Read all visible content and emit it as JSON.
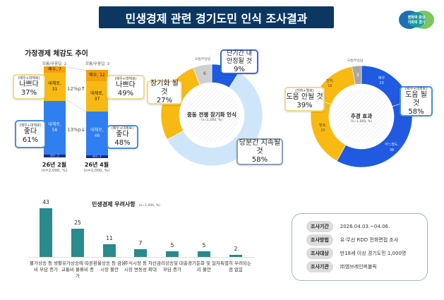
{
  "title": "민생경제 관련 경기도민 인식 조사결과",
  "logo_text": "변화의 중심 기회의 경기",
  "colors": {
    "navy": "#0b3761",
    "blue": "#1f5ae0",
    "light_blue": "#cfe6fa",
    "yellow": "#f8b912",
    "orange": "#f5a10a",
    "gray": "#cfcfcf",
    "teal": "#2a8a8c",
    "dark_navy": "#1a2a8a"
  },
  "household": {
    "title": "가정경제 체감도 추이",
    "diff_bad": "12%p",
    "diff_good": "13%p",
    "bars": [
      {
        "label": "26년 2월",
        "n": "(n=2,000, %)",
        "dk": "모름/무응답, 2",
        "s1": "매우, 7",
        "s2": "대체로,",
        "s2v": "31",
        "s3": "대체로,",
        "s3v": "58",
        "s4": "매우, 2",
        "bad": {
          "sub": "(매우+대체로)",
          "label": "나쁘다",
          "pct": "37%"
        },
        "good": {
          "sub": "(매우+대체로)",
          "label": "좋다",
          "pct": "61%"
        }
      },
      {
        "label": "26년 4월",
        "n": "(n=1,000, %)",
        "dk": "모름/무응답, 3",
        "s1": "매우, 12",
        "s2": "대체로,",
        "s2v": "37",
        "s3": "대체로,",
        "s3v": "46",
        "s4": "매우, 2",
        "bad": {
          "sub": "(매우+대체로)",
          "label": "나쁘다",
          "pct": "49%"
        },
        "good": {
          "sub": "(매우+대체로)",
          "label": "좋다",
          "pct": "48%"
        }
      }
    ]
  },
  "war": {
    "title": "중동 전쟁 장기화 인식",
    "n": "(n=1,000, %)",
    "dk_label": "모름/무응답",
    "dk_value": "6",
    "c1": {
      "label": "단기간 내 안정될 것",
      "pct": "9%"
    },
    "c2": {
      "label": "장기화 될 것",
      "pct": "27%"
    },
    "c3": {
      "label": "당분간 지속될 것",
      "pct": "58%"
    }
  },
  "stimulus": {
    "title": "추경 효과",
    "n": "(n=1,000, %)",
    "dk_label": "모름/무응답",
    "dk_value": "3",
    "s1": "매우",
    "s1v": "20",
    "s2": "어느정도,",
    "s2v": "38",
    "s3": "별로,",
    "s3v": "23",
    "s4": "전혀,",
    "s4v": "16",
    "neg": {
      "sub": "(전혀+별로)",
      "label": "도움 안될 것",
      "pct": "39%"
    },
    "pos": {
      "sub": "(매우+대체로)",
      "label": "도움 될 것",
      "pct": "58%"
    }
  },
  "concerns": {
    "title": "민생경제 우려사항",
    "n": "(n=1,000, %)"
  },
  "survey": [
    {
      "k": "조사기간",
      "v": "2026.04.03.~04.06."
    },
    {
      "k": "조사방법",
      "v": "유·무선 RDD 전화면접 조사"
    },
    {
      "k": "조사대상",
      "v": "만18세 이상 경기도민 1,000명"
    },
    {
      "k": "조사기관",
      "v": "㈜엠브레인퍼블릭"
    }
  ],
  "chart_data": [
    {
      "type": "bar",
      "stacked": true,
      "title": "가정경제 체감도 추이",
      "categories": [
        "26년 2월",
        "26년 4월"
      ],
      "series": [
        {
          "name": "모름/무응답",
          "values": [
            2,
            3
          ]
        },
        {
          "name": "매우",
          "values": [
            7,
            12
          ]
        },
        {
          "name": "대체로",
          "values": [
            31,
            37
          ]
        },
        {
          "name": "대체로",
          "values": [
            58,
            46
          ]
        },
        {
          "name": "매우",
          "values": [
            2,
            2
          ]
        }
      ]
    },
    {
      "type": "pie",
      "donut": true,
      "title": "중동 전쟁 장기화 인식",
      "labels": [
        "단기간 내 안정될 것",
        "당분간 지속될 것",
        "장기화 될 것",
        "모름/무응답"
      ],
      "values": [
        9,
        58,
        27,
        6
      ]
    },
    {
      "type": "pie",
      "donut": true,
      "title": "추경 효과",
      "labels": [
        "매우",
        "어느정도",
        "별로",
        "전혀",
        "모름/무응답"
      ],
      "values": [
        20,
        38,
        23,
        16,
        3
      ]
    },
    {
      "type": "bar",
      "title": "민생경제 우려사항",
      "ylim": [
        0,
        45
      ],
      "categories": [
        "물가상승 등 생활비 부담 증가",
        "유가상승에 따른 교통비 물류비 증가",
        "환율상승 등 금융시장 불안",
        "주식시장 등 자산시장 변동성 확대",
        "금리상승및 대출부담 증가",
        "경기둔화 및 일자리 불안",
        "특별히 우려되는 점 없음"
      ],
      "values": [
        43,
        25,
        11,
        7,
        5,
        5,
        2
      ]
    }
  ]
}
